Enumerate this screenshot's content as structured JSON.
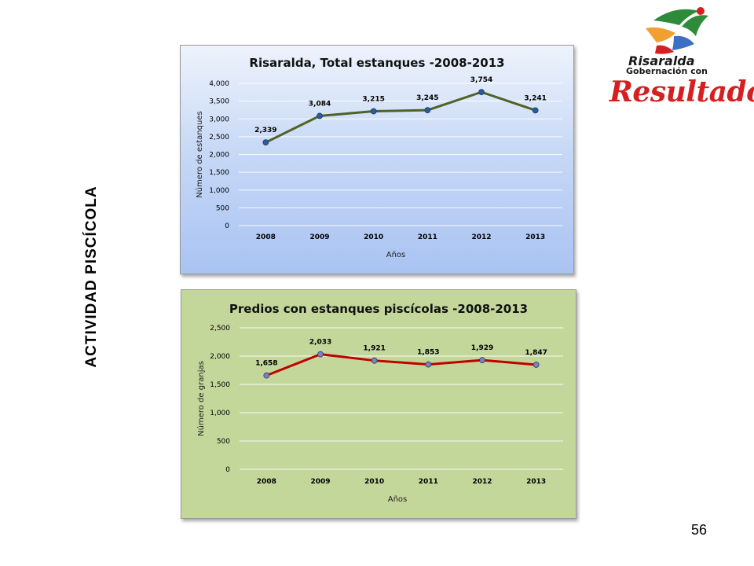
{
  "slide": {
    "side_title": "ACTIVIDAD PISCÍCOLA",
    "page_number": "56"
  },
  "logo": {
    "line1": "Risaralda",
    "line2": "Gobernación con",
    "line3": "Resultados",
    "colors": {
      "green": "#2e8b3a",
      "orange": "#f0a030",
      "blue": "#3b6fc4",
      "red": "#d42020"
    }
  },
  "chart_data": [
    {
      "type": "line",
      "title": "Risaralda, Total estanques -2008-2013",
      "xlabel": "Años",
      "ylabel": "Número de estanques",
      "categories": [
        "2008",
        "2009",
        "2010",
        "2011",
        "2012",
        "2013"
      ],
      "values": [
        2339,
        3084,
        3215,
        3245,
        3754,
        3241
      ],
      "data_labels": [
        "2,339",
        "3,084",
        "3,215",
        "3,245",
        "3,754",
        "3,241"
      ],
      "yticks": [
        "0",
        "500",
        "1,000",
        "1,500",
        "2,000",
        "2,500",
        "3,000",
        "3,500",
        "4,000"
      ],
      "ylim": [
        0,
        4000
      ],
      "grid": true,
      "line_color": "#4f6228",
      "marker_color": "#1f5fa5",
      "background": "blue-gradient"
    },
    {
      "type": "line",
      "title": "Predios con estanques piscícolas -2008-2013",
      "xlabel": "Años",
      "ylabel": "Número de granjas",
      "categories": [
        "2008",
        "2009",
        "2010",
        "2011",
        "2012",
        "2013"
      ],
      "values": [
        1658,
        2033,
        1921,
        1853,
        1929,
        1847
      ],
      "data_labels": [
        "1,658",
        "2,033",
        "1,921",
        "1,853",
        "1,929",
        "1,847"
      ],
      "yticks": [
        "0",
        "500",
        "1,000",
        "1,500",
        "2,000",
        "2,500"
      ],
      "ylim": [
        0,
        2500
      ],
      "grid": true,
      "line_color": "#c00000",
      "marker_color": "#8080c0",
      "background": "#c4d79b"
    }
  ]
}
